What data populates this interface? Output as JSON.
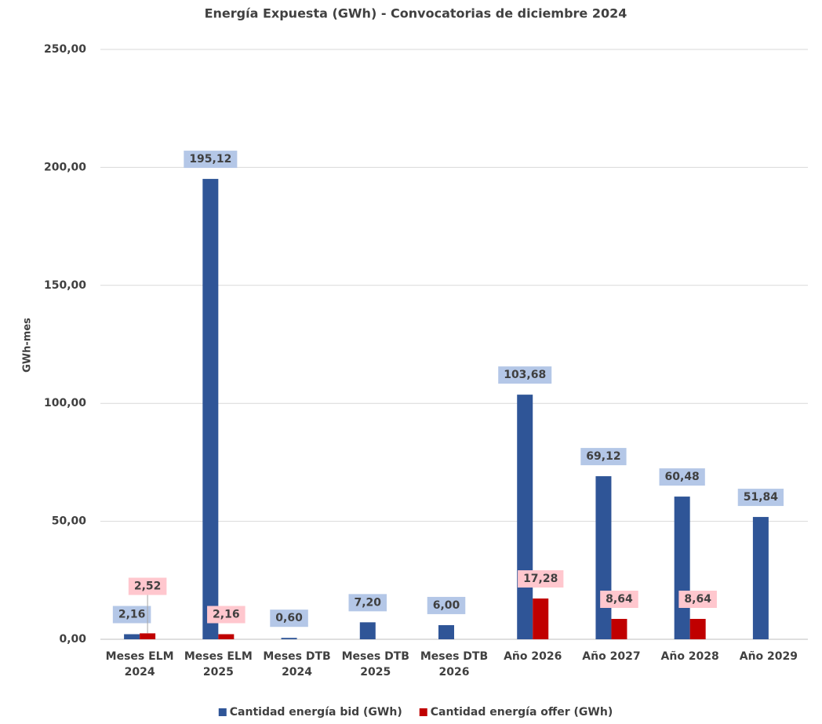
{
  "chart_data": {
    "type": "bar",
    "title": "Energía Expuesta (GWh) - Convocatorias de diciembre 2024",
    "y_label": "GWh-mes",
    "categories": [
      "Meses ELM 2024",
      "Meses ELM 2025",
      "Meses DTB 2024",
      "Meses DTB 2025",
      "Meses DTB 2026",
      "Año 2026",
      "Año 2027",
      "Año 2028",
      "Año 2029"
    ],
    "series": [
      {
        "name": "Cantidad energía bid (GWh)",
        "color": "#2f5597",
        "label_bg": "#b4c7e7",
        "values": [
          2.16,
          195.12,
          0.6,
          7.2,
          6.0,
          103.68,
          69.12,
          60.48,
          51.84
        ],
        "value_labels": [
          "2,16",
          "195,12",
          "0,60",
          "7,20",
          "6,00",
          "103,68",
          "69,12",
          "60,48",
          "51,84"
        ]
      },
      {
        "name": "Cantidad energía offer (GWh)",
        "color": "#c00000",
        "label_bg": "#ffc7ce",
        "values": [
          2.52,
          2.16,
          null,
          null,
          null,
          17.28,
          8.64,
          8.64,
          null
        ],
        "value_labels": [
          "2,52",
          "2,16",
          null,
          null,
          null,
          "17,28",
          "8,64",
          "8,64",
          null
        ]
      }
    ],
    "ylim": [
      0,
      250
    ],
    "yticks": [
      {
        "value": 0,
        "label": "0,00"
      },
      {
        "value": 50,
        "label": "50,00"
      },
      {
        "value": 100,
        "label": "100,00"
      },
      {
        "value": 150,
        "label": "150,00"
      },
      {
        "value": 200,
        "label": "200,00"
      },
      {
        "value": 250,
        "label": "250,00"
      }
    ],
    "grid": true,
    "legend": "bottom"
  }
}
